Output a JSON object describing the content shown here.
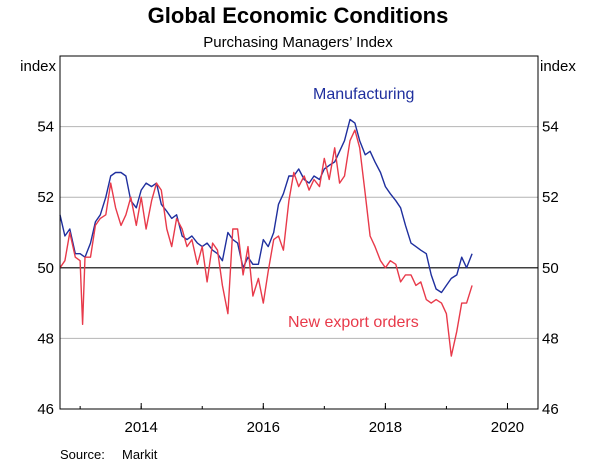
{
  "chart_data": {
    "type": "line",
    "title": "Global Economic Conditions",
    "subtitle": "Purchasing Managers’ Index",
    "left_unit": "index",
    "right_unit": "index",
    "ylim": [
      46,
      56
    ],
    "yticks": [
      46,
      48,
      50,
      52,
      54
    ],
    "xlim": [
      2012.67,
      2020.5
    ],
    "xticks": [
      {
        "label": "2014",
        "x": 2014.0
      },
      {
        "label": "2016",
        "x": 2016.0
      },
      {
        "label": "2018",
        "x": 2018.0
      },
      {
        "label": "2020",
        "x": 2020.0
      }
    ],
    "reference_line": 50,
    "grid": true,
    "source_label": "Source:",
    "source_value": "Markit",
    "series": [
      {
        "name": "Manufacturing",
        "color": "#1f2f9e",
        "points": [
          [
            2012.67,
            51.5
          ],
          [
            2012.75,
            50.9
          ],
          [
            2012.83,
            51.1
          ],
          [
            2012.92,
            50.4
          ],
          [
            2013.0,
            50.4
          ],
          [
            2013.08,
            50.3
          ],
          [
            2013.17,
            50.7
          ],
          [
            2013.25,
            51.3
          ],
          [
            2013.33,
            51.5
          ],
          [
            2013.42,
            52.0
          ],
          [
            2013.5,
            52.6
          ],
          [
            2013.58,
            52.7
          ],
          [
            2013.67,
            52.7
          ],
          [
            2013.75,
            52.6
          ],
          [
            2013.83,
            51.9
          ],
          [
            2013.92,
            51.7
          ],
          [
            2014.0,
            52.2
          ],
          [
            2014.08,
            52.4
          ],
          [
            2014.17,
            52.3
          ],
          [
            2014.25,
            52.4
          ],
          [
            2014.33,
            51.8
          ],
          [
            2014.42,
            51.6
          ],
          [
            2014.5,
            51.4
          ],
          [
            2014.58,
            51.5
          ],
          [
            2014.67,
            50.9
          ],
          [
            2014.75,
            50.8
          ],
          [
            2014.83,
            50.9
          ],
          [
            2014.92,
            50.7
          ],
          [
            2015.0,
            50.6
          ],
          [
            2015.08,
            50.7
          ],
          [
            2015.17,
            50.5
          ],
          [
            2015.25,
            50.4
          ],
          [
            2015.33,
            50.2
          ],
          [
            2015.42,
            51.0
          ],
          [
            2015.5,
            50.8
          ],
          [
            2015.58,
            50.7
          ],
          [
            2015.67,
            50.0
          ],
          [
            2015.75,
            50.3
          ],
          [
            2015.83,
            50.1
          ],
          [
            2015.92,
            50.1
          ],
          [
            2016.0,
            50.8
          ],
          [
            2016.08,
            50.6
          ],
          [
            2016.17,
            51.0
          ],
          [
            2016.25,
            51.8
          ],
          [
            2016.33,
            52.1
          ],
          [
            2016.42,
            52.6
          ],
          [
            2016.5,
            52.6
          ],
          [
            2016.58,
            52.8
          ],
          [
            2016.67,
            52.5
          ],
          [
            2016.75,
            52.4
          ],
          [
            2016.83,
            52.6
          ],
          [
            2016.92,
            52.5
          ],
          [
            2017.0,
            52.8
          ],
          [
            2017.08,
            52.9
          ],
          [
            2017.17,
            53.0
          ],
          [
            2017.25,
            53.3
          ],
          [
            2017.33,
            53.6
          ],
          [
            2017.42,
            54.2
          ],
          [
            2017.5,
            54.1
          ],
          [
            2017.58,
            53.6
          ],
          [
            2017.67,
            53.2
          ],
          [
            2017.75,
            53.3
          ],
          [
            2017.83,
            53.0
          ],
          [
            2017.92,
            52.7
          ],
          [
            2018.0,
            52.3
          ],
          [
            2018.08,
            52.1
          ],
          [
            2018.17,
            51.9
          ],
          [
            2018.25,
            51.7
          ],
          [
            2018.33,
            51.2
          ],
          [
            2018.42,
            50.7
          ],
          [
            2018.5,
            50.6
          ],
          [
            2018.58,
            50.5
          ],
          [
            2018.67,
            50.4
          ],
          [
            2018.75,
            49.8
          ],
          [
            2018.83,
            49.4
          ],
          [
            2018.92,
            49.3
          ],
          [
            2019.0,
            49.5
          ],
          [
            2019.08,
            49.7
          ],
          [
            2019.17,
            49.8
          ],
          [
            2019.25,
            50.3
          ],
          [
            2019.33,
            50.0
          ],
          [
            2019.42,
            50.4
          ]
        ]
      },
      {
        "name": "New export orders",
        "color": "#e83a4a",
        "points": [
          [
            2012.67,
            50.0
          ],
          [
            2012.75,
            50.2
          ],
          [
            2012.83,
            51.0
          ],
          [
            2012.92,
            50.3
          ],
          [
            2013.0,
            50.2
          ],
          [
            2013.04,
            48.4
          ],
          [
            2013.08,
            50.3
          ],
          [
            2013.17,
            50.3
          ],
          [
            2013.25,
            51.2
          ],
          [
            2013.33,
            51.4
          ],
          [
            2013.42,
            51.5
          ],
          [
            2013.5,
            52.4
          ],
          [
            2013.58,
            51.7
          ],
          [
            2013.67,
            51.2
          ],
          [
            2013.75,
            51.5
          ],
          [
            2013.83,
            52.0
          ],
          [
            2013.92,
            51.2
          ],
          [
            2014.0,
            52.0
          ],
          [
            2014.08,
            51.1
          ],
          [
            2014.17,
            51.9
          ],
          [
            2014.25,
            52.4
          ],
          [
            2014.33,
            52.2
          ],
          [
            2014.42,
            51.1
          ],
          [
            2014.5,
            50.6
          ],
          [
            2014.58,
            51.4
          ],
          [
            2014.67,
            51.1
          ],
          [
            2014.75,
            50.6
          ],
          [
            2014.83,
            50.8
          ],
          [
            2014.92,
            50.1
          ],
          [
            2015.0,
            50.6
          ],
          [
            2015.08,
            49.6
          ],
          [
            2015.17,
            50.7
          ],
          [
            2015.25,
            50.5
          ],
          [
            2015.33,
            49.5
          ],
          [
            2015.42,
            48.7
          ],
          [
            2015.5,
            51.1
          ],
          [
            2015.58,
            51.1
          ],
          [
            2015.67,
            49.8
          ],
          [
            2015.75,
            50.6
          ],
          [
            2015.83,
            49.2
          ],
          [
            2015.92,
            49.7
          ],
          [
            2016.0,
            49.0
          ],
          [
            2016.08,
            49.9
          ],
          [
            2016.17,
            50.8
          ],
          [
            2016.25,
            50.9
          ],
          [
            2016.33,
            50.5
          ],
          [
            2016.42,
            51.9
          ],
          [
            2016.5,
            52.7
          ],
          [
            2016.58,
            52.3
          ],
          [
            2016.67,
            52.6
          ],
          [
            2016.75,
            52.2
          ],
          [
            2016.83,
            52.5
          ],
          [
            2016.92,
            52.3
          ],
          [
            2017.0,
            53.1
          ],
          [
            2017.08,
            52.5
          ],
          [
            2017.17,
            53.4
          ],
          [
            2017.25,
            52.4
          ],
          [
            2017.33,
            52.6
          ],
          [
            2017.42,
            53.6
          ],
          [
            2017.5,
            53.9
          ],
          [
            2017.58,
            53.4
          ],
          [
            2017.67,
            52.1
          ],
          [
            2017.75,
            50.9
          ],
          [
            2017.83,
            50.6
          ],
          [
            2017.92,
            50.2
          ],
          [
            2018.0,
            50.0
          ],
          [
            2018.08,
            50.2
          ],
          [
            2018.17,
            50.1
          ],
          [
            2018.25,
            49.6
          ],
          [
            2018.33,
            49.8
          ],
          [
            2018.42,
            49.8
          ],
          [
            2018.5,
            49.5
          ],
          [
            2018.58,
            49.6
          ],
          [
            2018.67,
            49.1
          ],
          [
            2018.75,
            49.0
          ],
          [
            2018.83,
            49.1
          ],
          [
            2018.92,
            49.0
          ],
          [
            2019.0,
            48.7
          ],
          [
            2019.08,
            47.5
          ],
          [
            2019.17,
            48.2
          ],
          [
            2019.25,
            49.0
          ],
          [
            2019.33,
            49.0
          ],
          [
            2019.42,
            49.5
          ]
        ]
      }
    ]
  }
}
